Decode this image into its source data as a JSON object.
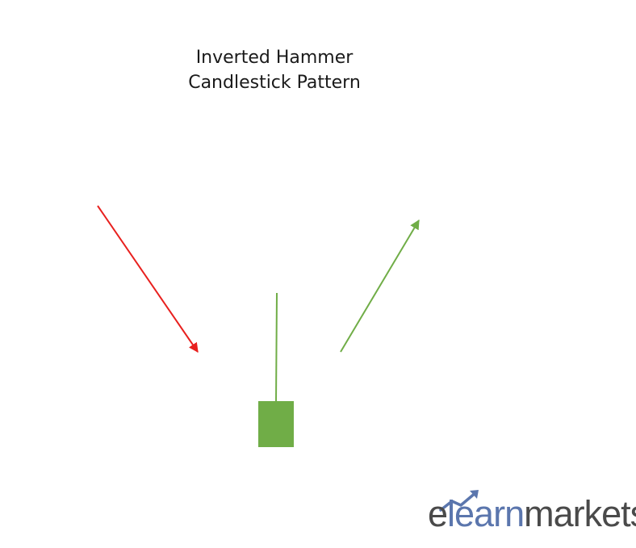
{
  "title": {
    "line1": "Inverted Hammer",
    "line2": "Candlestick Pattern"
  },
  "diagram": {
    "downtrend_arrow": {
      "direction": "down",
      "color": "#e8201e"
    },
    "uptrend_arrow": {
      "direction": "up",
      "color": "#70ad47"
    },
    "candle": {
      "type": "inverted-hammer",
      "body_color": "#70ad47",
      "wick_color": "#70ad47"
    }
  },
  "logo": {
    "part1": "e",
    "part2": "learn",
    "part3": "markets",
    "accent_color": "#5b76ad",
    "text_color": "#4a4a4a"
  }
}
